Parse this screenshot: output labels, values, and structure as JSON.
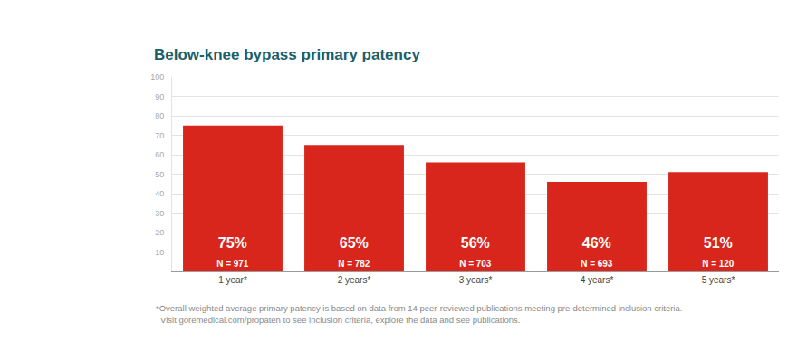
{
  "chart_data": {
    "type": "bar",
    "title": "Below-knee bypass primary patency",
    "categories": [
      "1 year*",
      "2 years*",
      "3 years*",
      "4 years*",
      "5 years*"
    ],
    "values": [
      75,
      65,
      56,
      46,
      51
    ],
    "value_labels": [
      "75%",
      "65%",
      "56%",
      "46%",
      "51%"
    ],
    "n_labels": [
      "N = 971",
      "N = 782",
      "N = 703",
      "N = 693",
      "N = 120"
    ],
    "color": "#d9261c",
    "ylim": [
      0,
      100
    ],
    "yticks": [
      10,
      20,
      30,
      40,
      50,
      60,
      70,
      80,
      90,
      100
    ],
    "grid": true,
    "data_labels": true,
    "footnote": [
      "*Overall weighted average primary patency is based on data from 14 peer-reviewed publications meeting pre-determined inclusion criteria.",
      "Visit goremedical.com/propaten to see inclusion criteria, explore the data and see publications."
    ]
  }
}
